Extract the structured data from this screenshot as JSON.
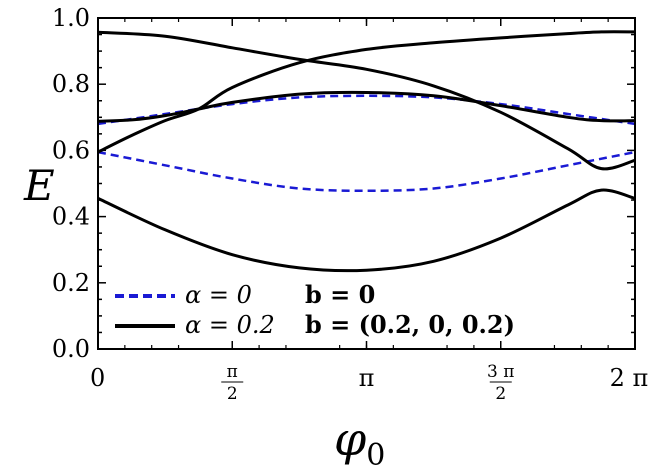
{
  "chart_data": {
    "type": "line",
    "xlabel_symbol": "φ",
    "xlabel_subscript": "0",
    "ylabel": "E",
    "xlim": [
      0,
      6.2832
    ],
    "ylim": [
      0,
      1.0
    ],
    "grid": false,
    "legend_placement": "bottom-left",
    "yticks": [
      {
        "value": 0.0,
        "label": "0.0"
      },
      {
        "value": 0.2,
        "label": "0.2"
      },
      {
        "value": 0.4,
        "label": "0.4"
      },
      {
        "value": 0.6,
        "label": "0.6"
      },
      {
        "value": 0.8,
        "label": "0.8"
      },
      {
        "value": 1.0,
        "label": "1.0"
      }
    ],
    "xticks": [
      {
        "value": 0,
        "label": "0"
      },
      {
        "value": 1.5708,
        "numerator": "π",
        "denominator": "2"
      },
      {
        "value": 3.1416,
        "label": "π"
      },
      {
        "value": 4.7124,
        "numerator": "3 π",
        "denominator": "2"
      },
      {
        "value": 6.2832,
        "label": "2 π"
      }
    ],
    "legend": [
      {
        "style": "dashed",
        "color": "#1a1ad4",
        "alpha": "α = 0",
        "b": "b = 0"
      },
      {
        "style": "solid",
        "color": "#000000",
        "alpha": "α = 0.2",
        "b": "b = (0.2, 0, 0.2)"
      }
    ],
    "series": [
      {
        "group": "α = 0, b = 0",
        "style": "dashed",
        "color": "#1a1ad4",
        "x": [
          0,
          0.7854,
          1.5708,
          2.3562,
          3.1416,
          3.927,
          4.7124,
          5.4978,
          6.2832
        ],
        "y": [
          0.68,
          0.71,
          0.74,
          0.76,
          0.765,
          0.76,
          0.74,
          0.71,
          0.68
        ]
      },
      {
        "group": "α = 0, b = 0",
        "style": "dashed",
        "color": "#1a1ad4",
        "x": [
          0,
          0.7854,
          1.5708,
          2.3562,
          3.1416,
          3.927,
          4.7124,
          5.4978,
          6.2832
        ],
        "y": [
          0.595,
          0.555,
          0.515,
          0.485,
          0.478,
          0.485,
          0.515,
          0.555,
          0.595
        ]
      },
      {
        "group": "α = 0.2, b = (0.2, 0, 0.2)",
        "style": "solid",
        "color": "#000000",
        "x": [
          0,
          0.7854,
          1.5708,
          2.3562,
          3.1416,
          3.927,
          4.7124,
          5.4978,
          5.89,
          6.2832
        ],
        "y": [
          0.957,
          0.945,
          0.91,
          0.875,
          0.845,
          0.795,
          0.715,
          0.605,
          0.545,
          0.57
        ]
      },
      {
        "group": "α = 0.2, b = (0.2, 0, 0.2)",
        "style": "solid",
        "color": "#000000",
        "x": [
          0,
          0.3927,
          0.7854,
          1.1781,
          1.5708,
          2.3562,
          3.1416,
          3.927,
          4.7124,
          5.4978,
          5.89,
          6.2832
        ],
        "y": [
          0.595,
          0.645,
          0.69,
          0.725,
          0.79,
          0.865,
          0.905,
          0.925,
          0.94,
          0.953,
          0.958,
          0.958
        ]
      },
      {
        "group": "α = 0.2, b = (0.2, 0, 0.2)",
        "style": "solid",
        "color": "#000000",
        "x": [
          0,
          0.3927,
          0.7854,
          1.1781,
          1.5708,
          2.3562,
          3.1416,
          3.927,
          4.7124,
          5.4978,
          5.89,
          6.2832
        ],
        "y": [
          0.688,
          0.692,
          0.705,
          0.725,
          0.745,
          0.77,
          0.775,
          0.765,
          0.735,
          0.7,
          0.69,
          0.69
        ]
      },
      {
        "group": "α = 0.2, b = (0.2, 0, 0.2)",
        "style": "solid",
        "color": "#000000",
        "x": [
          0,
          0.7854,
          1.5708,
          2.3562,
          3.1416,
          3.927,
          4.7124,
          5.4978,
          5.89,
          6.2832
        ],
        "y": [
          0.455,
          0.36,
          0.285,
          0.245,
          0.238,
          0.265,
          0.335,
          0.435,
          0.48,
          0.455
        ]
      }
    ]
  }
}
